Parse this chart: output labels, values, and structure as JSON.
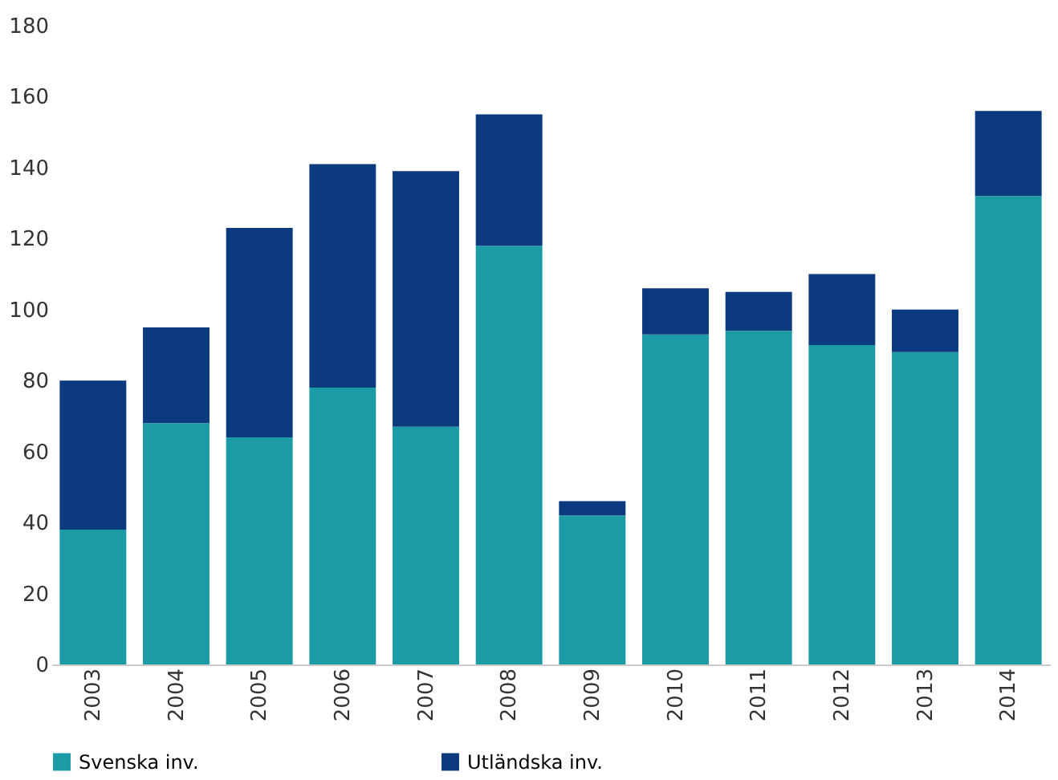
{
  "chart_data": {
    "type": "bar",
    "stacked": true,
    "categories": [
      "2003",
      "2004",
      "2005",
      "2006",
      "2007",
      "2008",
      "2009",
      "2010",
      "2011",
      "2012",
      "2013",
      "2014"
    ],
    "series": [
      {
        "name": "Svenska inv.",
        "color": "#1a9ba6",
        "values": [
          38,
          68,
          64,
          78,
          67,
          118,
          42,
          93,
          94,
          90,
          88,
          132
        ]
      },
      {
        "name": "Utländska inv.",
        "color": "#0b3a7e",
        "values": [
          42,
          27,
          59,
          63,
          72,
          37,
          4,
          13,
          11,
          20,
          12,
          24
        ]
      }
    ],
    "ylim": [
      0,
      180
    ],
    "yticks": [
      0,
      20,
      40,
      60,
      80,
      100,
      120,
      140,
      160,
      180
    ],
    "grid": false,
    "legend": "bottom"
  }
}
